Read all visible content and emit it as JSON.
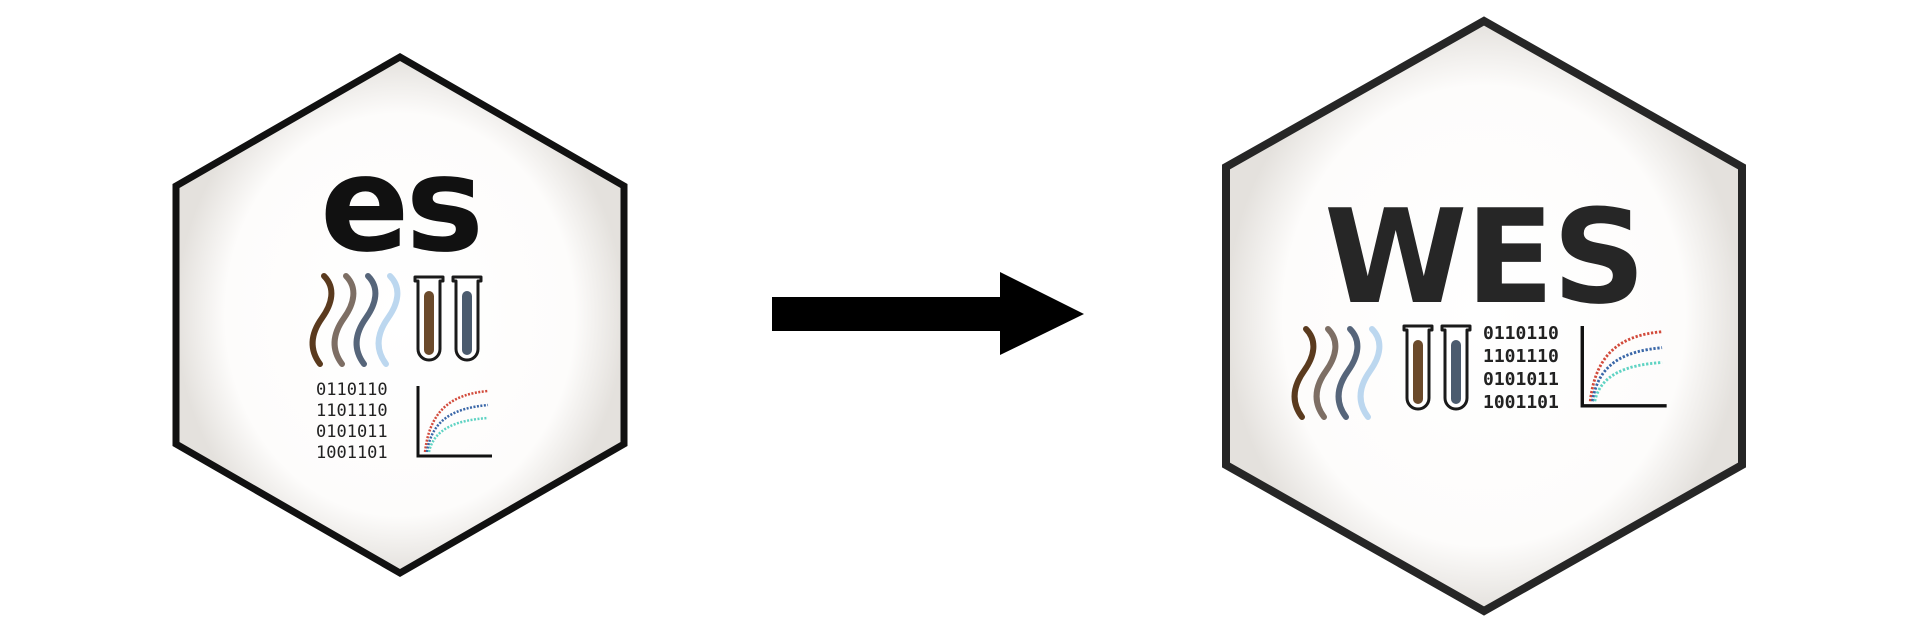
{
  "left_logo": {
    "title": "es",
    "binary_lines": [
      "0110110",
      "1101110",
      "0101011",
      "1001101"
    ]
  },
  "right_logo": {
    "title": "WES",
    "binary_lines": [
      "0110110",
      "1101110",
      "0101011",
      "1001101"
    ]
  },
  "arrow": {
    "direction": "right"
  },
  "colors": {
    "hex_border": "#111111",
    "hex_fill_center": "#ffffff",
    "hex_fill_edge": "#e4e1dd",
    "title_left": "#111111",
    "title_right": "#262626",
    "wave_1": "#5a3a1e",
    "wave_2": "#7d6e64",
    "wave_3": "#56657a",
    "wave_4": "#bcd7ef",
    "tube_1_liquid": "#6b4a2b",
    "tube_2_liquid": "#4b5b6e",
    "curve_red": "#d24a3b",
    "curve_blue": "#3a67a8",
    "curve_teal": "#5fd3c3",
    "arrow": "#000000"
  },
  "icons": [
    "dna-wave-icon",
    "test-tube-icon",
    "growth-chart-icon",
    "right-arrow-icon"
  ]
}
